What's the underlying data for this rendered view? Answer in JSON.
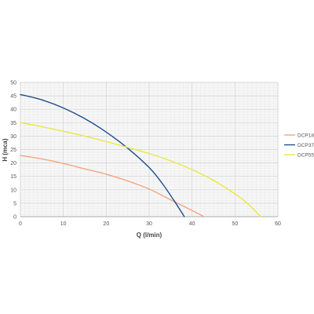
{
  "chart_data": {
    "type": "line",
    "title": "",
    "xlabel": "Q (l/min)",
    "ylabel": "H (mca)",
    "xlim": [
      0,
      60
    ],
    "ylim": [
      0,
      50
    ],
    "x_ticks": [
      0,
      10,
      20,
      30,
      40,
      50,
      60
    ],
    "y_ticks": [
      0,
      5,
      10,
      15,
      20,
      25,
      30,
      35,
      40,
      45,
      50
    ],
    "grid": true,
    "legend": "right",
    "series": [
      {
        "name": "DCP18",
        "color": "#f4a582",
        "points": [
          [
            0,
            22.8
          ],
          [
            5,
            21.5
          ],
          [
            10,
            19.8
          ],
          [
            15,
            17.8
          ],
          [
            20,
            15.8
          ],
          [
            25,
            13.3
          ],
          [
            30,
            10.3
          ],
          [
            35,
            6.3
          ],
          [
            40,
            2.3
          ],
          [
            42.8,
            0
          ]
        ]
      },
      {
        "name": "DCP37",
        "color": "#1f4e8c",
        "points": [
          [
            0,
            45.5
          ],
          [
            5,
            43.5
          ],
          [
            10,
            40.5
          ],
          [
            15,
            36.5
          ],
          [
            20,
            31.5
          ],
          [
            25,
            25.5
          ],
          [
            30,
            18.3
          ],
          [
            33,
            12.5
          ],
          [
            36,
            5.5
          ],
          [
            38.2,
            0
          ]
        ]
      },
      {
        "name": "DCP55",
        "color": "#e8e842",
        "points": [
          [
            0,
            35
          ],
          [
            5,
            33.5
          ],
          [
            10,
            31.8
          ],
          [
            15,
            30
          ],
          [
            20,
            28
          ],
          [
            25,
            25.8
          ],
          [
            30,
            23.5
          ],
          [
            35,
            20.8
          ],
          [
            40,
            17.5
          ],
          [
            45,
            13.5
          ],
          [
            50,
            8.5
          ],
          [
            53,
            4.8
          ],
          [
            56,
            0
          ]
        ]
      }
    ]
  }
}
